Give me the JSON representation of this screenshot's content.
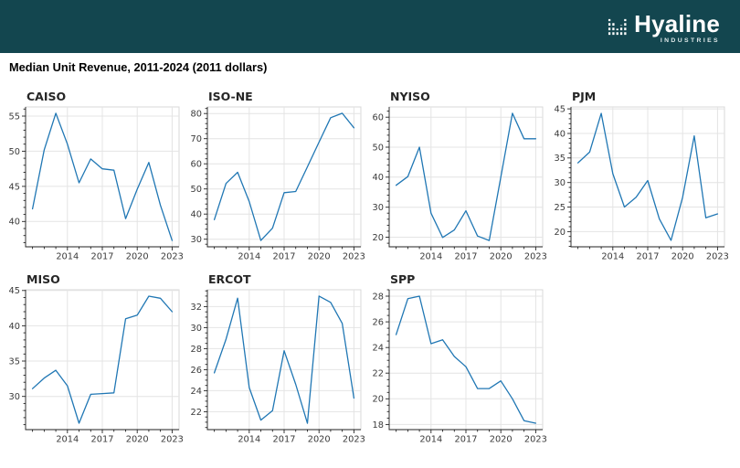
{
  "header": {
    "brand": "Hyaline",
    "brand_sub": "INDUSTRIES",
    "bg_color": "#13464f",
    "logo_icon": "dashed-bar-chart-icon"
  },
  "page": {
    "title": "Median Unit Revenue, 2011-2024 (2011 dollars)"
  },
  "chart_data": [
    {
      "type": "line",
      "title": "CAISO",
      "x": [
        2011,
        2012,
        2013,
        2014,
        2015,
        2016,
        2017,
        2018,
        2019,
        2020,
        2021,
        2022,
        2023
      ],
      "values": [
        41.8,
        50.2,
        55.4,
        51.0,
        45.5,
        48.9,
        47.5,
        47.3,
        40.4,
        44.6,
        48.4,
        42.3,
        37.3
      ],
      "xticks": [
        2014,
        2017,
        2020,
        2023
      ],
      "yticks": [
        40,
        45,
        50,
        55
      ],
      "xlim": [
        2010.4,
        2023.6
      ],
      "ylim": [
        36.4,
        56.3
      ],
      "y_minor_step": 1,
      "grid": true,
      "line_color": "#2077b4"
    },
    {
      "type": "line",
      "title": "ISO-NE",
      "x": [
        2011,
        2012,
        2013,
        2014,
        2015,
        2016,
        2017,
        2018,
        2019,
        2020,
        2021,
        2022,
        2023
      ],
      "values": [
        37.8,
        52.2,
        56.6,
        45.0,
        29.5,
        34.4,
        48.5,
        49.0,
        58.8,
        68.6,
        78.3,
        80.1,
        74.3
      ],
      "xticks": [
        2014,
        2017,
        2020,
        2023
      ],
      "yticks": [
        30,
        40,
        50,
        60,
        70,
        80
      ],
      "xlim": [
        2010.4,
        2023.6
      ],
      "ylim": [
        27.0,
        82.6
      ],
      "y_minor_step": 2,
      "grid": true,
      "line_color": "#2077b4"
    },
    {
      "type": "line",
      "title": "NYISO",
      "x": [
        2011,
        2012,
        2013,
        2014,
        2015,
        2016,
        2017,
        2018,
        2019,
        2020,
        2021,
        2022,
        2023
      ],
      "values": [
        37.3,
        40.2,
        50.0,
        28.0,
        19.9,
        22.4,
        28.8,
        20.4,
        18.9,
        40.0,
        61.3,
        52.8,
        52.8
      ],
      "xticks": [
        2014,
        2017,
        2020,
        2023
      ],
      "yticks": [
        20,
        30,
        40,
        50,
        60
      ],
      "xlim": [
        2010.4,
        2023.6
      ],
      "ylim": [
        16.8,
        63.4
      ],
      "y_minor_step": 2,
      "grid": true,
      "line_color": "#2077b4"
    },
    {
      "type": "line",
      "title": "PJM",
      "x": [
        2011,
        2012,
        2013,
        2014,
        2015,
        2016,
        2017,
        2018,
        2019,
        2020,
        2021,
        2022,
        2023
      ],
      "values": [
        34.0,
        36.2,
        44.1,
        31.8,
        25.0,
        27.0,
        30.4,
        22.6,
        18.2,
        27.0,
        39.5,
        22.8,
        23.6
      ],
      "xticks": [
        2014,
        2017,
        2020,
        2023
      ],
      "yticks": [
        20,
        25,
        30,
        35,
        40,
        45
      ],
      "xlim": [
        2010.4,
        2023.6
      ],
      "ylim": [
        16.9,
        45.4
      ],
      "y_minor_step": 1,
      "grid": true,
      "line_color": "#2077b4"
    },
    {
      "type": "line",
      "title": "MISO",
      "x": [
        2011,
        2012,
        2013,
        2014,
        2015,
        2016,
        2017,
        2018,
        2019,
        2020,
        2021,
        2022,
        2023
      ],
      "values": [
        31.1,
        32.6,
        33.7,
        31.5,
        26.2,
        30.3,
        30.4,
        30.5,
        41.0,
        41.5,
        44.2,
        43.9,
        42.0
      ],
      "xticks": [
        2014,
        2017,
        2020,
        2023
      ],
      "yticks": [
        30,
        35,
        40,
        45
      ],
      "xlim": [
        2010.4,
        2023.6
      ],
      "ylim": [
        25.3,
        45.1
      ],
      "y_minor_step": 1,
      "grid": true,
      "line_color": "#2077b4"
    },
    {
      "type": "line",
      "title": "ERCOT",
      "x": [
        2011,
        2012,
        2013,
        2014,
        2015,
        2016,
        2017,
        2018,
        2019,
        2020,
        2021,
        2022,
        2023
      ],
      "values": [
        25.7,
        28.9,
        32.8,
        24.3,
        21.2,
        22.1,
        27.8,
        24.6,
        20.9,
        33.0,
        32.4,
        30.4,
        23.3
      ],
      "xticks": [
        2014,
        2017,
        2020,
        2023
      ],
      "yticks": [
        22,
        24,
        26,
        28,
        30,
        32
      ],
      "xlim": [
        2010.4,
        2023.6
      ],
      "ylim": [
        20.3,
        33.6
      ],
      "y_minor_step": 0.5,
      "grid": true,
      "line_color": "#2077b4"
    },
    {
      "type": "line",
      "title": "SPP",
      "x": [
        2011,
        2012,
        2013,
        2014,
        2015,
        2016,
        2017,
        2018,
        2019,
        2020,
        2021,
        2022,
        2023
      ],
      "values": [
        25.0,
        27.8,
        28.0,
        24.3,
        24.6,
        23.3,
        22.5,
        20.8,
        20.8,
        21.4,
        20.0,
        18.3,
        18.1
      ],
      "xticks": [
        2014,
        2017,
        2020,
        2023
      ],
      "yticks": [
        18,
        20,
        22,
        24,
        26,
        28
      ],
      "xlim": [
        2010.4,
        2023.6
      ],
      "ylim": [
        17.6,
        28.5
      ],
      "y_minor_step": 0.5,
      "grid": true,
      "line_color": "#2077b4"
    }
  ]
}
